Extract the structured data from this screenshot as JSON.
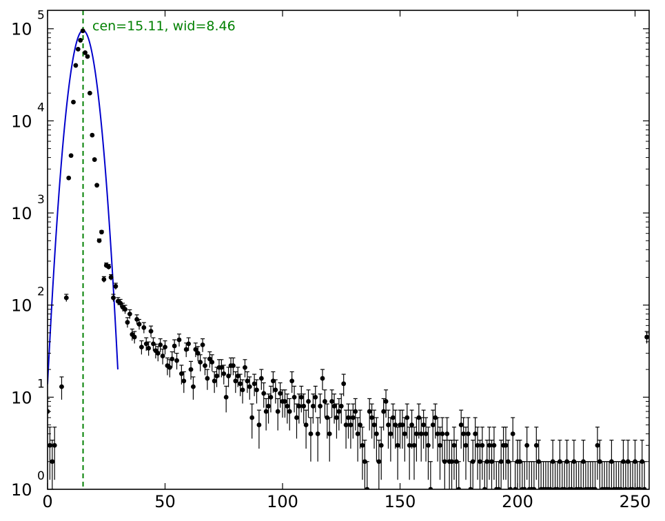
{
  "chart_data": {
    "type": "scatter",
    "annotation": "cen=15.11, wid=8.46",
    "xlim": [
      0,
      256
    ],
    "ylim_log10": [
      0,
      5.2
    ],
    "yscale": "log",
    "x_ticks": [
      0,
      50,
      100,
      150,
      200,
      250
    ],
    "y_ticks": [
      {
        "base": "10",
        "exp": "0"
      },
      {
        "base": "10",
        "exp": "1"
      },
      {
        "base": "10",
        "exp": "2"
      },
      {
        "base": "10",
        "exp": "3"
      },
      {
        "base": "10",
        "exp": "4"
      },
      {
        "base": "10",
        "exp": "5"
      }
    ],
    "fit": {
      "type": "gaussian",
      "center": 15.11,
      "width": 8.46,
      "amplitude": 96000,
      "color": "#0000cc"
    },
    "center_line_color": "#008000",
    "data_color": "#000000",
    "series": [
      {
        "points": [
          [
            0,
            7
          ],
          [
            1,
            3
          ],
          [
            2,
            2
          ],
          [
            3,
            3
          ],
          [
            6,
            13
          ],
          [
            8,
            120
          ],
          [
            9,
            2400
          ],
          [
            10,
            4200
          ],
          [
            11,
            16000
          ],
          [
            12,
            40000
          ],
          [
            13,
            60000
          ],
          [
            14,
            75000
          ],
          [
            15,
            95000
          ],
          [
            16,
            55000
          ],
          [
            17,
            50000
          ],
          [
            18,
            20000
          ],
          [
            19,
            7000
          ],
          [
            20,
            3800
          ],
          [
            21,
            2000
          ],
          [
            22,
            500
          ],
          [
            23,
            620
          ],
          [
            24,
            190
          ],
          [
            25,
            270
          ],
          [
            26,
            260
          ],
          [
            27,
            200
          ],
          [
            28,
            120
          ],
          [
            29,
            160
          ],
          [
            30,
            110
          ],
          [
            31,
            105
          ],
          [
            32,
            95
          ],
          [
            33,
            90
          ],
          [
            34,
            65
          ],
          [
            35,
            80
          ],
          [
            36,
            48
          ],
          [
            37,
            45
          ],
          [
            38,
            70
          ],
          [
            39,
            62
          ],
          [
            40,
            35
          ],
          [
            41,
            57
          ],
          [
            42,
            38
          ],
          [
            43,
            34
          ],
          [
            44,
            52
          ],
          [
            45,
            38
          ],
          [
            46,
            32
          ],
          [
            47,
            30
          ],
          [
            48,
            37
          ],
          [
            49,
            28
          ],
          [
            50,
            35
          ],
          [
            51,
            22
          ],
          [
            52,
            21
          ],
          [
            53,
            26
          ],
          [
            54,
            36
          ],
          [
            55,
            25
          ],
          [
            56,
            42
          ],
          [
            57,
            18
          ],
          [
            58,
            15
          ],
          [
            59,
            33
          ],
          [
            60,
            38
          ],
          [
            61,
            20
          ],
          [
            62,
            13
          ],
          [
            63,
            33
          ],
          [
            64,
            30
          ],
          [
            65,
            24
          ],
          [
            66,
            37
          ],
          [
            67,
            22
          ],
          [
            68,
            16
          ],
          [
            69,
            26
          ],
          [
            70,
            24
          ],
          [
            71,
            15
          ],
          [
            72,
            17
          ],
          [
            73,
            21
          ],
          [
            74,
            21
          ],
          [
            75,
            18
          ],
          [
            76,
            10
          ],
          [
            77,
            17
          ],
          [
            78,
            22
          ],
          [
            79,
            22
          ],
          [
            80,
            15
          ],
          [
            81,
            17
          ],
          [
            82,
            14
          ],
          [
            83,
            12
          ],
          [
            84,
            21
          ],
          [
            85,
            15
          ],
          [
            86,
            13
          ],
          [
            87,
            6
          ],
          [
            88,
            14
          ],
          [
            89,
            12
          ],
          [
            90,
            5
          ],
          [
            91,
            16
          ],
          [
            92,
            11
          ],
          [
            93,
            7
          ],
          [
            94,
            8
          ],
          [
            95,
            10
          ],
          [
            96,
            15
          ],
          [
            97,
            12
          ],
          [
            98,
            7
          ],
          [
            99,
            11
          ],
          [
            100,
            9
          ],
          [
            101,
            9
          ],
          [
            102,
            8
          ],
          [
            103,
            7
          ],
          [
            104,
            15
          ],
          [
            105,
            10
          ],
          [
            106,
            6
          ],
          [
            107,
            8
          ],
          [
            108,
            10
          ],
          [
            109,
            8
          ],
          [
            110,
            5
          ],
          [
            111,
            9
          ],
          [
            112,
            4
          ],
          [
            113,
            8
          ],
          [
            114,
            10
          ],
          [
            115,
            4
          ],
          [
            116,
            8
          ],
          [
            117,
            16
          ],
          [
            118,
            9
          ],
          [
            119,
            6
          ],
          [
            120,
            4
          ],
          [
            121,
            9
          ],
          [
            122,
            8
          ],
          [
            123,
            6
          ],
          [
            124,
            7
          ],
          [
            125,
            8
          ],
          [
            126,
            14
          ],
          [
            127,
            5
          ],
          [
            128,
            6
          ],
          [
            129,
            5
          ],
          [
            130,
            6
          ],
          [
            131,
            7
          ],
          [
            132,
            4
          ],
          [
            133,
            5
          ],
          [
            134,
            3
          ],
          [
            135,
            2
          ],
          [
            136,
            1
          ],
          [
            137,
            7
          ],
          [
            138,
            6
          ],
          [
            139,
            5
          ],
          [
            140,
            4
          ],
          [
            141,
            2
          ],
          [
            142,
            3
          ],
          [
            143,
            7
          ],
          [
            144,
            9
          ],
          [
            145,
            5
          ],
          [
            146,
            4
          ],
          [
            147,
            6
          ],
          [
            148,
            5
          ],
          [
            149,
            3
          ],
          [
            150,
            5
          ],
          [
            151,
            5
          ],
          [
            152,
            4
          ],
          [
            153,
            6
          ],
          [
            154,
            3
          ],
          [
            155,
            5
          ],
          [
            156,
            3
          ],
          [
            157,
            4
          ],
          [
            158,
            6
          ],
          [
            159,
            4
          ],
          [
            160,
            5
          ],
          [
            161,
            4
          ],
          [
            162,
            3
          ],
          [
            163,
            1
          ],
          [
            164,
            5
          ],
          [
            165,
            6
          ],
          [
            166,
            4
          ],
          [
            167,
            3
          ],
          [
            168,
            4
          ],
          [
            169,
            2
          ],
          [
            170,
            4
          ],
          [
            171,
            2
          ],
          [
            172,
            2
          ],
          [
            173,
            3
          ],
          [
            174,
            2
          ],
          [
            175,
            1
          ],
          [
            176,
            5
          ],
          [
            177,
            4
          ],
          [
            178,
            3
          ],
          [
            179,
            4
          ],
          [
            180,
            1
          ],
          [
            181,
            2
          ],
          [
            182,
            4
          ],
          [
            183,
            3
          ],
          [
            184,
            2
          ],
          [
            185,
            3
          ],
          [
            186,
            1
          ],
          [
            187,
            2
          ],
          [
            188,
            3
          ],
          [
            189,
            2
          ],
          [
            190,
            3
          ],
          [
            191,
            1
          ],
          [
            192,
            1
          ],
          [
            193,
            2
          ],
          [
            194,
            3
          ],
          [
            195,
            3
          ],
          [
            196,
            2
          ],
          [
            197,
            1
          ],
          [
            198,
            4
          ],
          [
            199,
            1
          ],
          [
            200,
            2
          ],
          [
            201,
            2
          ],
          [
            202,
            1
          ],
          [
            203,
            1
          ],
          [
            204,
            3
          ],
          [
            205,
            1
          ],
          [
            206,
            1
          ],
          [
            207,
            1
          ],
          [
            208,
            3
          ],
          [
            209,
            2
          ],
          [
            210,
            1
          ],
          [
            211,
            1
          ],
          [
            212,
            1
          ],
          [
            213,
            1
          ],
          [
            214,
            1
          ],
          [
            215,
            2
          ],
          [
            216,
            1
          ],
          [
            217,
            1
          ],
          [
            218,
            2
          ],
          [
            219,
            1
          ],
          [
            220,
            1
          ],
          [
            221,
            2
          ],
          [
            222,
            1
          ],
          [
            223,
            1
          ],
          [
            224,
            2
          ],
          [
            225,
            1
          ],
          [
            226,
            1
          ],
          [
            227,
            1
          ],
          [
            228,
            2
          ],
          [
            229,
            1
          ],
          [
            230,
            1
          ],
          [
            231,
            1
          ],
          [
            232,
            1
          ],
          [
            233,
            1
          ],
          [
            234,
            3
          ],
          [
            235,
            2
          ],
          [
            236,
            1
          ],
          [
            237,
            1
          ],
          [
            238,
            1
          ],
          [
            239,
            1
          ],
          [
            240,
            2
          ],
          [
            241,
            1
          ],
          [
            242,
            1
          ],
          [
            243,
            1
          ],
          [
            244,
            1
          ],
          [
            245,
            2
          ],
          [
            246,
            1
          ],
          [
            247,
            2
          ],
          [
            248,
            1
          ],
          [
            249,
            1
          ],
          [
            250,
            2
          ],
          [
            251,
            1
          ],
          [
            252,
            1
          ],
          [
            253,
            2
          ],
          [
            254,
            1
          ],
          [
            255,
            45
          ]
        ]
      }
    ]
  }
}
